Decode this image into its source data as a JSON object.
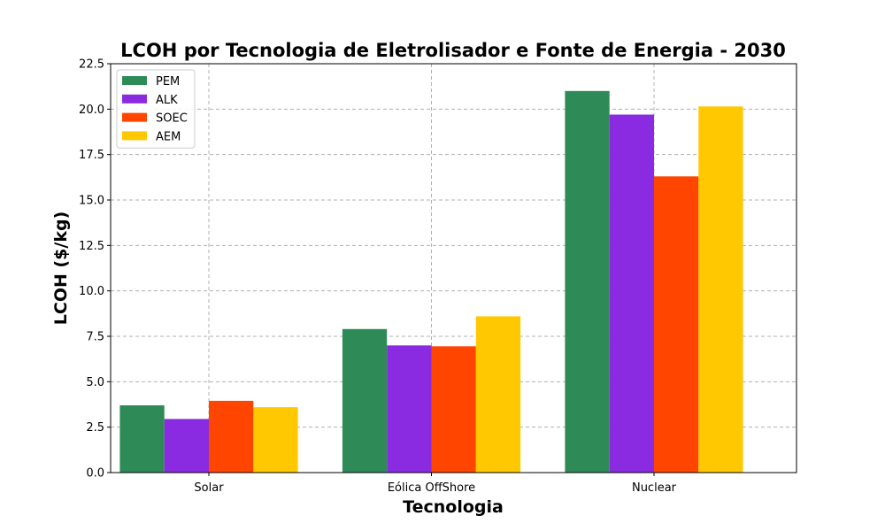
{
  "chart_data": {
    "type": "bar",
    "title": "LCOH por Tecnologia de Eletrolisador e Fonte de Energia - 2030",
    "xlabel": "Tecnologia",
    "ylabel": "LCOH ($/kg)",
    "categories": [
      "Solar",
      "Eólica OffShore",
      "Nuclear"
    ],
    "ylim": [
      0,
      22.5
    ],
    "yticks": [
      "0.0",
      "2.5",
      "5.0",
      "7.5",
      "10.0",
      "12.5",
      "15.0",
      "17.5",
      "20.0",
      "22.5"
    ],
    "grid": true,
    "legend_position": "top-left",
    "series": [
      {
        "name": "PEM",
        "color": "#2e8b57",
        "values": [
          3.7,
          7.9,
          21.0
        ]
      },
      {
        "name": "ALK",
        "color": "#8a2be2",
        "values": [
          2.95,
          7.0,
          19.7
        ]
      },
      {
        "name": "SOEC",
        "color": "#ff4500",
        "values": [
          3.95,
          6.95,
          16.3
        ]
      },
      {
        "name": "AEM",
        "color": "#ffc800",
        "values": [
          3.6,
          8.6,
          20.15
        ]
      }
    ]
  }
}
